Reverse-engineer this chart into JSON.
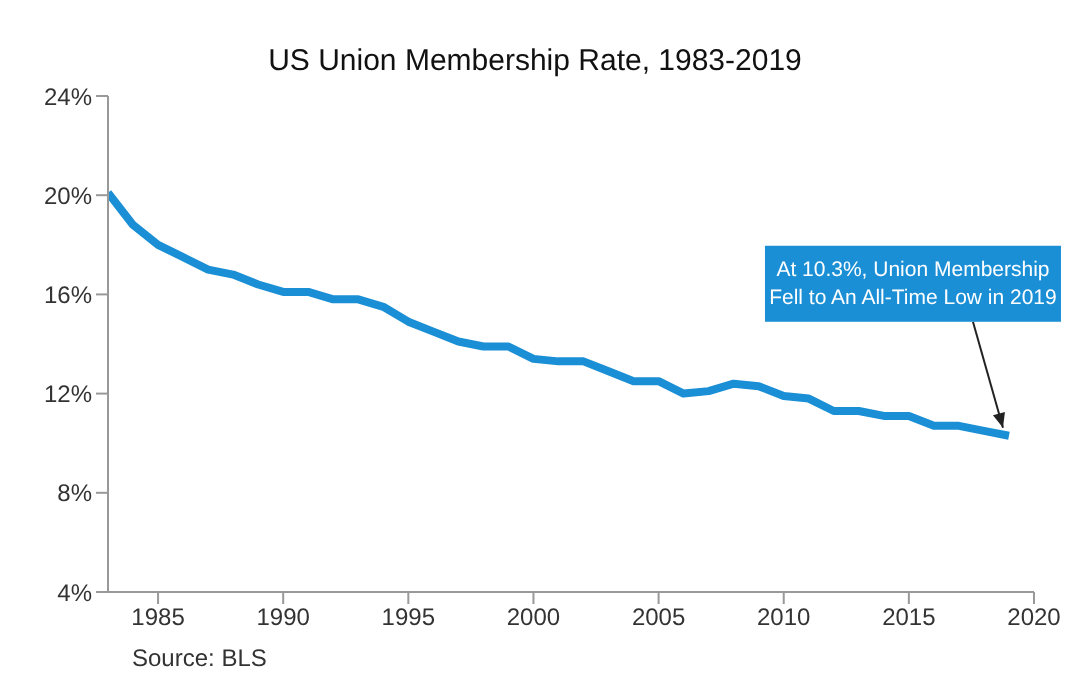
{
  "chart_data": {
    "type": "line",
    "title": "US Union Membership Rate, 1983-2019",
    "x": [
      1983,
      1984,
      1985,
      1986,
      1987,
      1988,
      1989,
      1990,
      1991,
      1992,
      1993,
      1994,
      1995,
      1996,
      1997,
      1998,
      1999,
      2000,
      2001,
      2002,
      2003,
      2004,
      2005,
      2006,
      2007,
      2008,
      2009,
      2010,
      2011,
      2012,
      2013,
      2014,
      2015,
      2016,
      2017,
      2018,
      2019
    ],
    "series": [
      {
        "color": "#1a8fd6",
        "values": [
          20.1,
          18.8,
          18.0,
          17.5,
          17.0,
          16.8,
          16.4,
          16.1,
          16.1,
          15.8,
          15.8,
          15.5,
          14.9,
          14.5,
          14.1,
          13.9,
          13.9,
          13.4,
          13.3,
          13.3,
          12.9,
          12.5,
          12.5,
          12.0,
          12.1,
          12.4,
          12.3,
          11.9,
          11.8,
          11.3,
          11.3,
          11.1,
          11.1,
          10.7,
          10.7,
          10.5,
          10.3
        ]
      }
    ],
    "xlim": [
      1983,
      2020
    ],
    "xticks": [
      1985,
      1990,
      1995,
      2000,
      2005,
      2010,
      2015,
      2020
    ],
    "ylim": [
      4,
      24
    ],
    "yticks": [
      {
        "value": 4,
        "label": "4%"
      },
      {
        "value": 8,
        "label": "8%"
      },
      {
        "value": 12,
        "label": "12%"
      },
      {
        "value": 16,
        "label": "16%"
      },
      {
        "value": 20,
        "label": "20%"
      },
      {
        "value": 24,
        "label": "24%"
      }
    ],
    "grid": false,
    "marker": "none",
    "line_style": "solid",
    "annotations": [
      {
        "text": "At 10.3%, Union Membership\nFell to An All-Time Low in 2019",
        "x": 2019,
        "y": 10.3
      },
      "Source: BLS"
    ]
  }
}
